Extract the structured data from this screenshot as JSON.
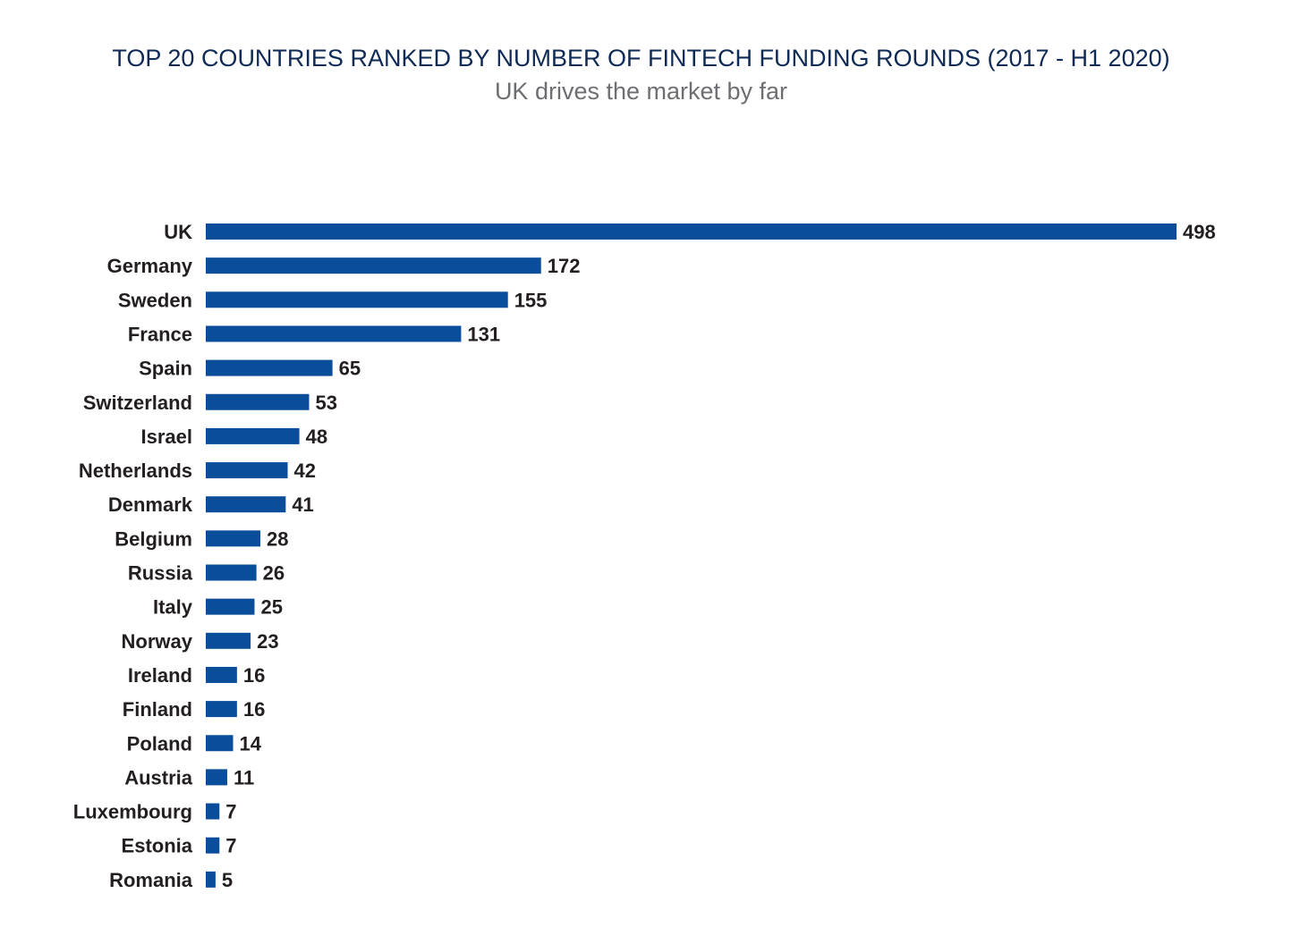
{
  "chart_data": {
    "type": "bar",
    "orientation": "horizontal",
    "title": "TOP 20 COUNTRIES RANKED BY NUMBER OF FINTECH FUNDING ROUNDS (2017 - H1 2020)",
    "subtitle": "UK drives the market by far",
    "categories": [
      "UK",
      "Germany",
      "Sweden",
      "France",
      "Spain",
      "Switzerland",
      "Israel",
      "Netherlands",
      "Denmark",
      "Belgium",
      "Russia",
      "Italy",
      "Norway",
      "Ireland",
      "Finland",
      "Poland",
      "Austria",
      "Luxembourg",
      "Estonia",
      "Romania"
    ],
    "values": [
      498,
      172,
      155,
      131,
      65,
      53,
      48,
      42,
      41,
      28,
      26,
      25,
      23,
      16,
      16,
      14,
      11,
      7,
      7,
      5
    ],
    "value_labels": [
      "498",
      "172",
      "155",
      "131",
      "65",
      "53",
      "48",
      "42",
      "41",
      "28",
      "26",
      "25",
      "23",
      "16",
      "16",
      "14",
      "11",
      "7",
      "7",
      "5"
    ],
    "xlim": [
      0,
      498
    ],
    "grid": false,
    "colors": {
      "bar": "#0a4d9a",
      "title": "#0e2a55",
      "subtitle": "#6d6e71",
      "labels": "#231f20"
    }
  }
}
